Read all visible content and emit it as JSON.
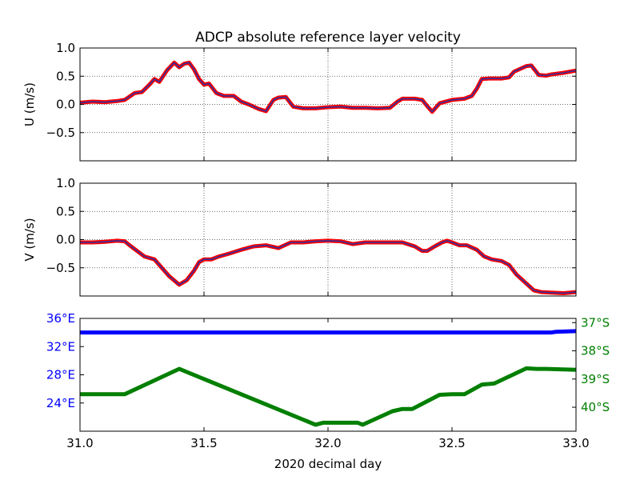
{
  "figure": {
    "title": "ADCP absolute reference layer velocity",
    "xlabel": "2020 decimal day"
  },
  "chart_data": [
    {
      "type": "line",
      "name": "u-panel",
      "ylabel": "U (m/s)",
      "xlim": [
        31.0,
        33.0
      ],
      "ylim": [
        -1.0,
        1.0
      ],
      "x_ticks": [
        31.0,
        31.5,
        32.0,
        32.5,
        33.0
      ],
      "y_ticks": [
        -0.5,
        0.0,
        0.5,
        1.0
      ],
      "y_tick_labels": [
        "−0.5",
        "0.0",
        "0.5",
        "1.0"
      ],
      "grid": true,
      "series": [
        {
          "color": "#ff0000",
          "overlay_color": "#3030a0",
          "x": [
            31.0,
            31.05,
            31.1,
            31.15,
            31.18,
            31.22,
            31.25,
            31.28,
            31.3,
            31.32,
            31.35,
            31.38,
            31.4,
            31.42,
            31.44,
            31.46,
            31.48,
            31.5,
            31.52,
            31.55,
            31.58,
            31.62,
            31.65,
            31.68,
            31.72,
            31.75,
            31.78,
            31.8,
            31.83,
            31.86,
            31.9,
            31.95,
            32.0,
            32.05,
            32.1,
            32.15,
            32.2,
            32.25,
            32.28,
            32.3,
            32.35,
            32.38,
            32.4,
            32.42,
            32.45,
            32.5,
            32.55,
            32.58,
            32.6,
            32.62,
            32.65,
            32.7,
            32.73,
            32.75,
            32.78,
            32.8,
            32.82,
            32.85,
            32.88,
            32.9,
            32.95,
            33.0
          ],
          "y": [
            0.03,
            0.05,
            0.04,
            0.06,
            0.08,
            0.2,
            0.22,
            0.35,
            0.45,
            0.4,
            0.6,
            0.74,
            0.66,
            0.72,
            0.74,
            0.62,
            0.45,
            0.35,
            0.37,
            0.2,
            0.15,
            0.15,
            0.05,
            0.0,
            -0.08,
            -0.12,
            0.08,
            0.12,
            0.13,
            -0.04,
            -0.07,
            -0.07,
            -0.05,
            -0.04,
            -0.06,
            -0.06,
            -0.07,
            -0.06,
            0.05,
            0.1,
            0.1,
            0.08,
            -0.03,
            -0.13,
            0.02,
            0.08,
            0.1,
            0.15,
            0.28,
            0.45,
            0.46,
            0.46,
            0.48,
            0.58,
            0.64,
            0.68,
            0.69,
            0.52,
            0.51,
            0.53,
            0.56,
            0.6
          ]
        }
      ]
    },
    {
      "type": "line",
      "name": "v-panel",
      "ylabel": "V (m/s)",
      "xlim": [
        31.0,
        33.0
      ],
      "ylim": [
        -1.0,
        1.0
      ],
      "x_ticks": [
        31.0,
        31.5,
        32.0,
        32.5,
        33.0
      ],
      "y_ticks": [
        -0.5,
        0.0,
        0.5,
        1.0
      ],
      "y_tick_labels": [
        "−0.5",
        "0.0",
        "0.5",
        "1.0"
      ],
      "grid": true,
      "series": [
        {
          "color": "#ff0000",
          "overlay_color": "#3030a0",
          "x": [
            31.0,
            31.05,
            31.1,
            31.15,
            31.18,
            31.2,
            31.23,
            31.26,
            31.3,
            31.33,
            31.36,
            31.4,
            31.43,
            31.46,
            31.48,
            31.5,
            31.53,
            31.56,
            31.6,
            31.65,
            31.7,
            31.75,
            31.8,
            31.85,
            31.9,
            31.95,
            32.0,
            32.05,
            32.1,
            32.15,
            32.2,
            32.25,
            32.3,
            32.35,
            32.38,
            32.4,
            32.43,
            32.46,
            32.48,
            32.5,
            32.53,
            32.56,
            32.6,
            32.63,
            32.66,
            32.7,
            32.73,
            32.76,
            32.8,
            32.83,
            32.86,
            32.9,
            32.95,
            33.0
          ],
          "y": [
            -0.05,
            -0.05,
            -0.04,
            -0.02,
            -0.03,
            -0.1,
            -0.2,
            -0.3,
            -0.35,
            -0.5,
            -0.65,
            -0.8,
            -0.72,
            -0.55,
            -0.4,
            -0.35,
            -0.35,
            -0.3,
            -0.25,
            -0.18,
            -0.12,
            -0.1,
            -0.15,
            -0.05,
            -0.05,
            -0.03,
            -0.02,
            -0.03,
            -0.08,
            -0.05,
            -0.05,
            -0.05,
            -0.05,
            -0.12,
            -0.2,
            -0.2,
            -0.12,
            -0.05,
            -0.02,
            -0.05,
            -0.1,
            -0.1,
            -0.18,
            -0.3,
            -0.35,
            -0.38,
            -0.45,
            -0.62,
            -0.78,
            -0.9,
            -0.93,
            -0.94,
            -0.95,
            -0.93
          ]
        }
      ]
    },
    {
      "type": "line",
      "name": "position-panel",
      "xlim": [
        31.0,
        33.0
      ],
      "x_ticks": [
        31.0,
        31.5,
        32.0,
        32.5,
        33.0
      ],
      "x_tick_labels": [
        "31.0",
        "31.5",
        "32.0",
        "32.5",
        "33.0"
      ],
      "left_axis": {
        "color": "#0000ff",
        "ylim": [
          20.0,
          36.0
        ],
        "ticks": [
          24,
          28,
          32,
          36
        ],
        "tick_labels": [
          "24°E",
          "28°E",
          "32°E",
          "36°E"
        ]
      },
      "right_axis": {
        "color": "#007f00",
        "ylim": [
          40.85,
          36.85
        ],
        "ticks": [
          37,
          38,
          39,
          40
        ],
        "tick_labels": [
          "37°S",
          "38°S",
          "39°S",
          "40°S"
        ]
      },
      "series": [
        {
          "axis": "left",
          "color": "#0000ff",
          "x": [
            31.0,
            32.9,
            32.92,
            33.0
          ],
          "y": [
            34.0,
            34.0,
            34.1,
            34.2
          ]
        },
        {
          "axis": "right",
          "color": "#007f00",
          "x": [
            31.0,
            31.18,
            31.4,
            31.95,
            31.98,
            32.12,
            32.14,
            32.26,
            32.3,
            32.34,
            32.45,
            32.5,
            32.55,
            32.62,
            32.67,
            32.8,
            32.84,
            32.88,
            33.0
          ],
          "y": [
            39.54,
            39.54,
            38.64,
            40.62,
            40.55,
            40.55,
            40.62,
            40.14,
            40.06,
            40.06,
            39.56,
            39.54,
            39.54,
            39.2,
            39.16,
            38.62,
            38.64,
            38.64,
            38.67
          ]
        }
      ]
    }
  ]
}
